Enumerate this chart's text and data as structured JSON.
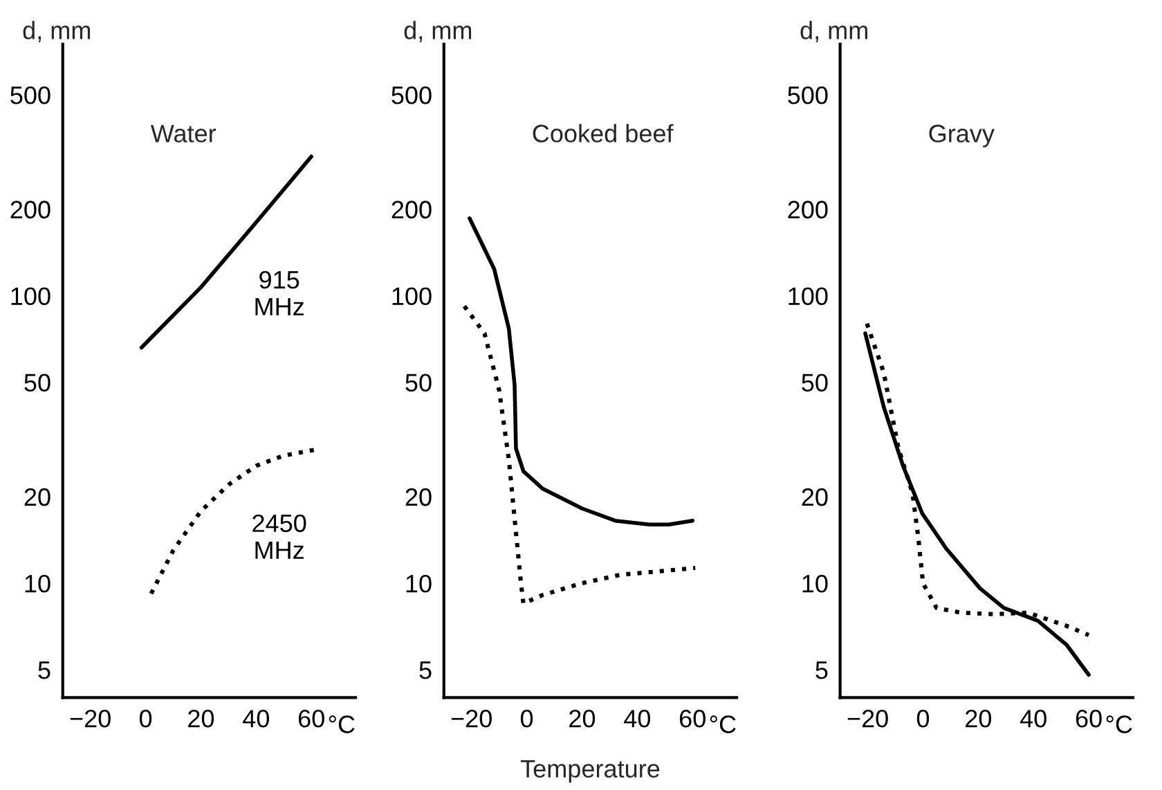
{
  "chart_data": [
    {
      "type": "line",
      "title": "Water",
      "ylabel": "d, mm",
      "log": "y",
      "grid": false,
      "legend": false,
      "xlim": [
        -30,
        76
      ],
      "ylim": [
        4,
        750
      ],
      "xticks": [
        -20,
        0,
        20,
        40,
        60
      ],
      "annotations": [
        "°C"
      ],
      "yticks": [
        5,
        10,
        20,
        50,
        100,
        200,
        500
      ],
      "series": [
        {
          "name": "915\nMHz",
          "color": "#000000",
          "line_style": "solid",
          "x": [
            -1.5,
            20,
            40,
            60
          ],
          "values": [
            66,
            107,
            180,
            305
          ]
        },
        {
          "name": "2450\nMHz",
          "color": "#000000",
          "line_style": "dotted",
          "x": [
            2,
            10,
            20,
            30,
            40,
            50,
            62
          ],
          "values": [
            9.2,
            13,
            17.8,
            22,
            25.6,
            27.8,
            29.2
          ]
        }
      ]
    },
    {
      "type": "line",
      "title": "Cooked beef",
      "ylabel": "d, mm",
      "xlabel": "Temperature",
      "log": "y",
      "grid": false,
      "legend": false,
      "xlim": [
        -30,
        76
      ],
      "ylim": [
        4,
        750
      ],
      "xticks": [
        -20,
        0,
        20,
        40,
        60
      ],
      "annotations": [
        "°C"
      ],
      "yticks": [
        5,
        10,
        20,
        50,
        100,
        200,
        500
      ],
      "series": [
        {
          "color": "#000000",
          "line_style": "solid",
          "x": [
            -20.7,
            -11.8,
            -6.5,
            -4.4,
            -3.9,
            -1.2,
            5.8,
            20,
            32,
            44.4,
            51.4,
            60
          ],
          "values": [
            186,
            124,
            77,
            49,
            29.4,
            24.5,
            21.3,
            18.2,
            16.5,
            16,
            16,
            16.5
          ]
        },
        {
          "color": "#000000",
          "line_style": "dotted",
          "x": [
            -22.6,
            -15.3,
            -10,
            -6.5,
            -3.9,
            -2.1,
            -1.2,
            5.8,
            20,
            34,
            48,
            61
          ],
          "values": [
            92,
            74,
            47,
            27,
            15,
            10,
            8.5,
            9.1,
            10,
            10.7,
            11,
            11.3
          ]
        }
      ]
    },
    {
      "type": "line",
      "title": "Gravy",
      "ylabel": "d, mm",
      "log": "y",
      "grid": false,
      "legend": false,
      "xlim": [
        -30,
        76
      ],
      "ylim": [
        4,
        750
      ],
      "xticks": [
        -20,
        0,
        20,
        40,
        60
      ],
      "annotations": [
        "°C"
      ],
      "yticks": [
        5,
        10,
        20,
        50,
        100,
        200,
        500
      ],
      "series": [
        {
          "color": "#000000",
          "line_style": "solid",
          "x": [
            -20.9,
            -14.2,
            -7.3,
            -0.3,
            8.4,
            20.6,
            29.3,
            41.6,
            52,
            60
          ],
          "values": [
            74,
            41,
            25.7,
            17.5,
            13.2,
            9.6,
            8.2,
            7.4,
            6.1,
            4.8
          ]
        },
        {
          "color": "#000000",
          "line_style": "dotted",
          "x": [
            -20.3,
            -14.2,
            -8.9,
            -3.8,
            -1.7,
            0,
            4.9,
            13.6,
            25.8,
            38,
            52,
            60
          ],
          "values": [
            80,
            54,
            29.5,
            20.6,
            14.4,
            10,
            8.2,
            7.9,
            7.8,
            7.9,
            7.1,
            6.6
          ]
        }
      ]
    }
  ]
}
